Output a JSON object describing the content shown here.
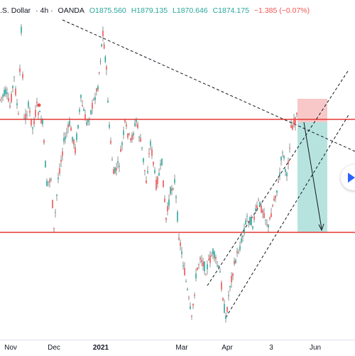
{
  "header": {
    "symbol": ".S. Dollar",
    "interval": "· 4h ·",
    "broker": "OANDA",
    "open": "O1875.560",
    "high": "H1879.135",
    "low": "L1870.646",
    "close": "C1874.175",
    "change": "−1.385 (−0.07%)"
  },
  "x_axis": {
    "labels": [
      "Nov",
      "Dec",
      "2021",
      "Mar",
      "Apr",
      "3",
      "Jun"
    ]
  },
  "colors": {
    "candle_up": "#26a69a",
    "candle_down": "#ef5350",
    "support_resistance": "#e53935",
    "trendline": "#131722",
    "stop_zone": "#f8c8c8",
    "target_zone": "#b7e3df",
    "play_arrow": "#2962ff"
  },
  "chart_data": {
    "type": "candlestick",
    "symbol": "Gold / U.S. Dollar",
    "interval": "4h",
    "horizontal_levels": [
      1877,
      1765
    ],
    "trade": {
      "direction": "short",
      "entry": 1876,
      "stop": 1896,
      "target": 1766
    },
    "price_path": [
      [
        "Nov",
        1890
      ],
      [
        "Nov",
        1950
      ],
      [
        "Nov",
        1860
      ],
      [
        "Nov",
        1840
      ],
      [
        "Dec",
        1765
      ],
      [
        "Dec",
        1860
      ],
      [
        "Dec",
        1880
      ],
      [
        "2021",
        1950
      ],
      [
        "2021",
        1840
      ],
      [
        "2021",
        1820
      ],
      [
        "2021",
        1870
      ],
      [
        "2021",
        1830
      ],
      [
        "Mar",
        1730
      ],
      [
        "Mar",
        1680
      ],
      [
        "Mar",
        1740
      ],
      [
        "Apr",
        1680
      ],
      [
        "Apr",
        1740
      ],
      [
        "Apr",
        1770
      ],
      [
        "3",
        1790
      ],
      [
        "3",
        1830
      ],
      [
        "3",
        1880
      ],
      [
        "Jun",
        1874
      ]
    ]
  }
}
